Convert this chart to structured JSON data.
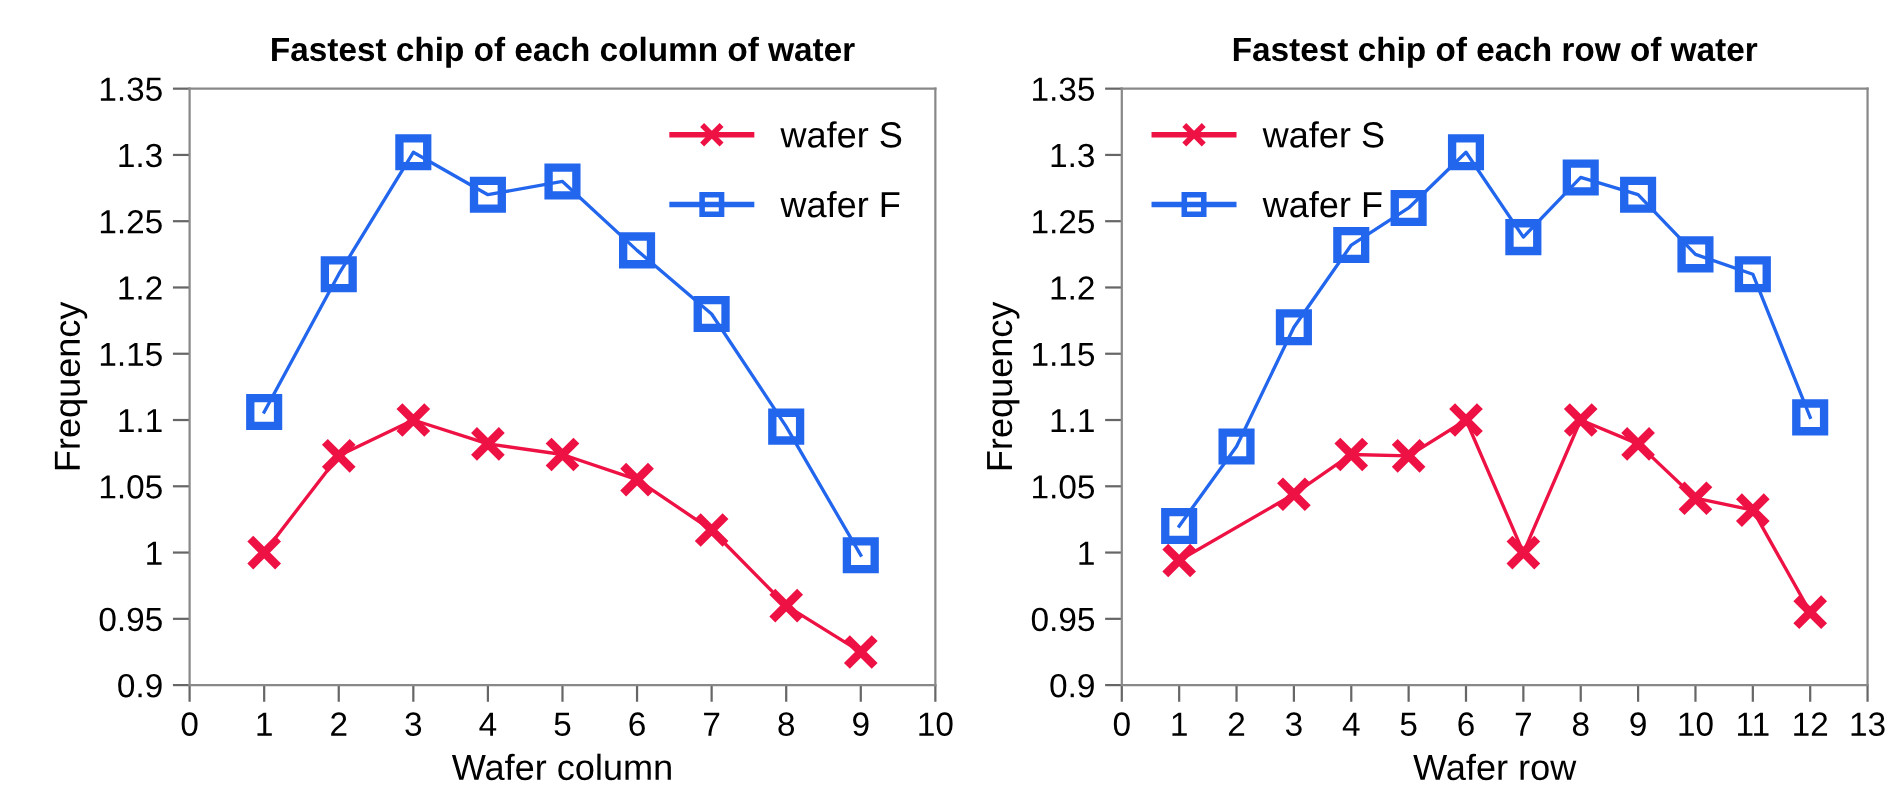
{
  "chart_data": [
    {
      "type": "line",
      "title": "Fastest chip of each column of water",
      "xlabel": "Wafer column",
      "ylabel": "Frequency",
      "xlim": [
        0,
        10
      ],
      "xticks": [
        0,
        1,
        2,
        3,
        4,
        5,
        6,
        7,
        8,
        9,
        10
      ],
      "ylim": [
        0.9,
        1.35
      ],
      "yticks": [
        0.9,
        0.95,
        1,
        1.05,
        1.1,
        1.15,
        1.2,
        1.25,
        1.3,
        1.35
      ],
      "grid": false,
      "legend": "top right",
      "series": [
        {
          "name": "wafer S",
          "color": "#ee1144",
          "marker": "cross",
          "x": [
            1,
            2,
            3,
            4,
            5,
            6,
            7,
            8,
            9
          ],
          "values": [
            1.0,
            1.073,
            1.1,
            1.082,
            1.074,
            1.055,
            1.017,
            0.96,
            0.925
          ]
        },
        {
          "name": "wafer F",
          "color": "#2266ee",
          "marker": "square",
          "x": [
            1,
            2,
            3,
            4,
            5,
            6,
            7,
            8,
            9
          ],
          "values": [
            1.106,
            1.21,
            1.302,
            1.27,
            1.28,
            1.228,
            1.18,
            1.095,
            0.998
          ]
        }
      ]
    },
    {
      "type": "line",
      "title": "Fastest chip of each row of water",
      "xlabel": "Wafer row",
      "ylabel": "Frequency",
      "xlim": [
        0,
        13
      ],
      "xticks": [
        0,
        1,
        2,
        3,
        4,
        5,
        6,
        7,
        8,
        9,
        10,
        11,
        12,
        13
      ],
      "ylim": [
        0.9,
        1.35
      ],
      "yticks": [
        0.9,
        0.95,
        1,
        1.05,
        1.1,
        1.15,
        1.2,
        1.25,
        1.3,
        1.35
      ],
      "grid": false,
      "legend": "top left",
      "series": [
        {
          "name": "wafer S",
          "color": "#ee1144",
          "marker": "cross",
          "x": [
            1,
            3,
            4,
            5,
            6,
            7,
            8,
            9,
            10,
            11,
            12
          ],
          "values": [
            0.994,
            1.044,
            1.074,
            1.073,
            1.1,
            1.0,
            1.1,
            1.082,
            1.041,
            1.032,
            0.955
          ]
        },
        {
          "name": "wafer F",
          "color": "#2266ee",
          "marker": "square",
          "x": [
            1,
            2,
            3,
            4,
            5,
            6,
            7,
            8,
            9,
            10,
            11,
            12
          ],
          "values": [
            1.02,
            1.08,
            1.17,
            1.232,
            1.26,
            1.302,
            1.238,
            1.283,
            1.27,
            1.225,
            1.21,
            1.102
          ]
        }
      ]
    }
  ]
}
